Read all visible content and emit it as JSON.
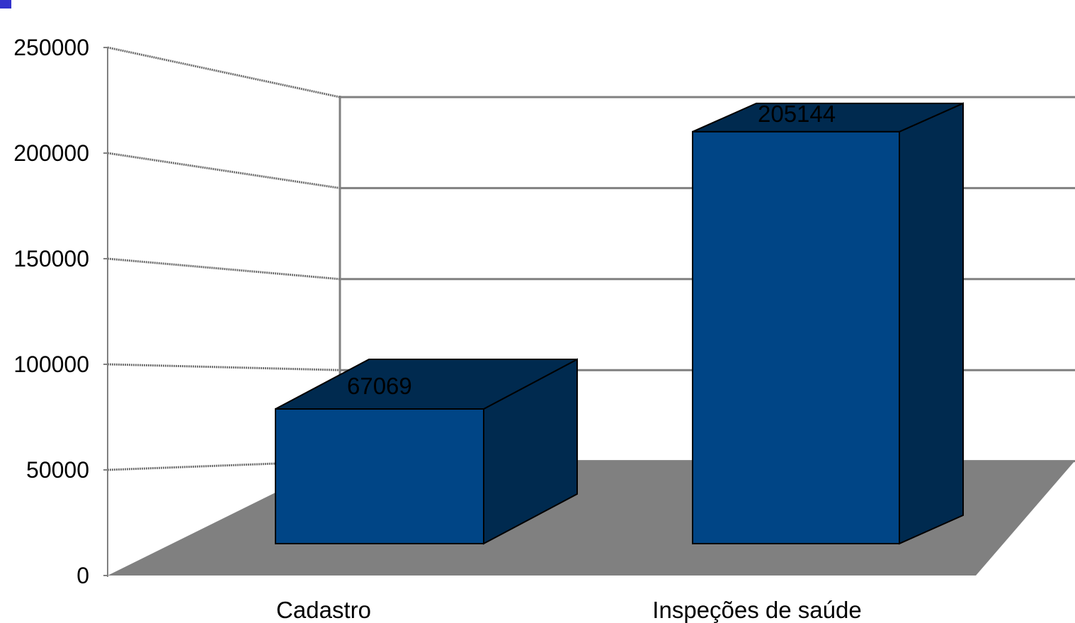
{
  "chart_data": {
    "type": "bar",
    "title": "",
    "xlabel": "",
    "ylabel": "",
    "categories": [
      "Cadastro",
      "Inspeções de saúde"
    ],
    "values": [
      67069,
      205144
    ],
    "data_labels": [
      "67069",
      "205144"
    ],
    "ylim": [
      0,
      250000
    ],
    "yticks": [
      0,
      50000,
      100000,
      150000,
      200000,
      250000
    ],
    "ytick_labels": [
      "0",
      "50000",
      "100000",
      "150000",
      "200000",
      "250000"
    ],
    "grid": true,
    "legend": "none",
    "three_d": true,
    "colors": {
      "bar_front": "#004586",
      "bar_top": "#002a4f",
      "bar_side": "#002a4f",
      "floor": "#808080",
      "grid": "#808080",
      "corner_marker": "#3333cc"
    }
  }
}
